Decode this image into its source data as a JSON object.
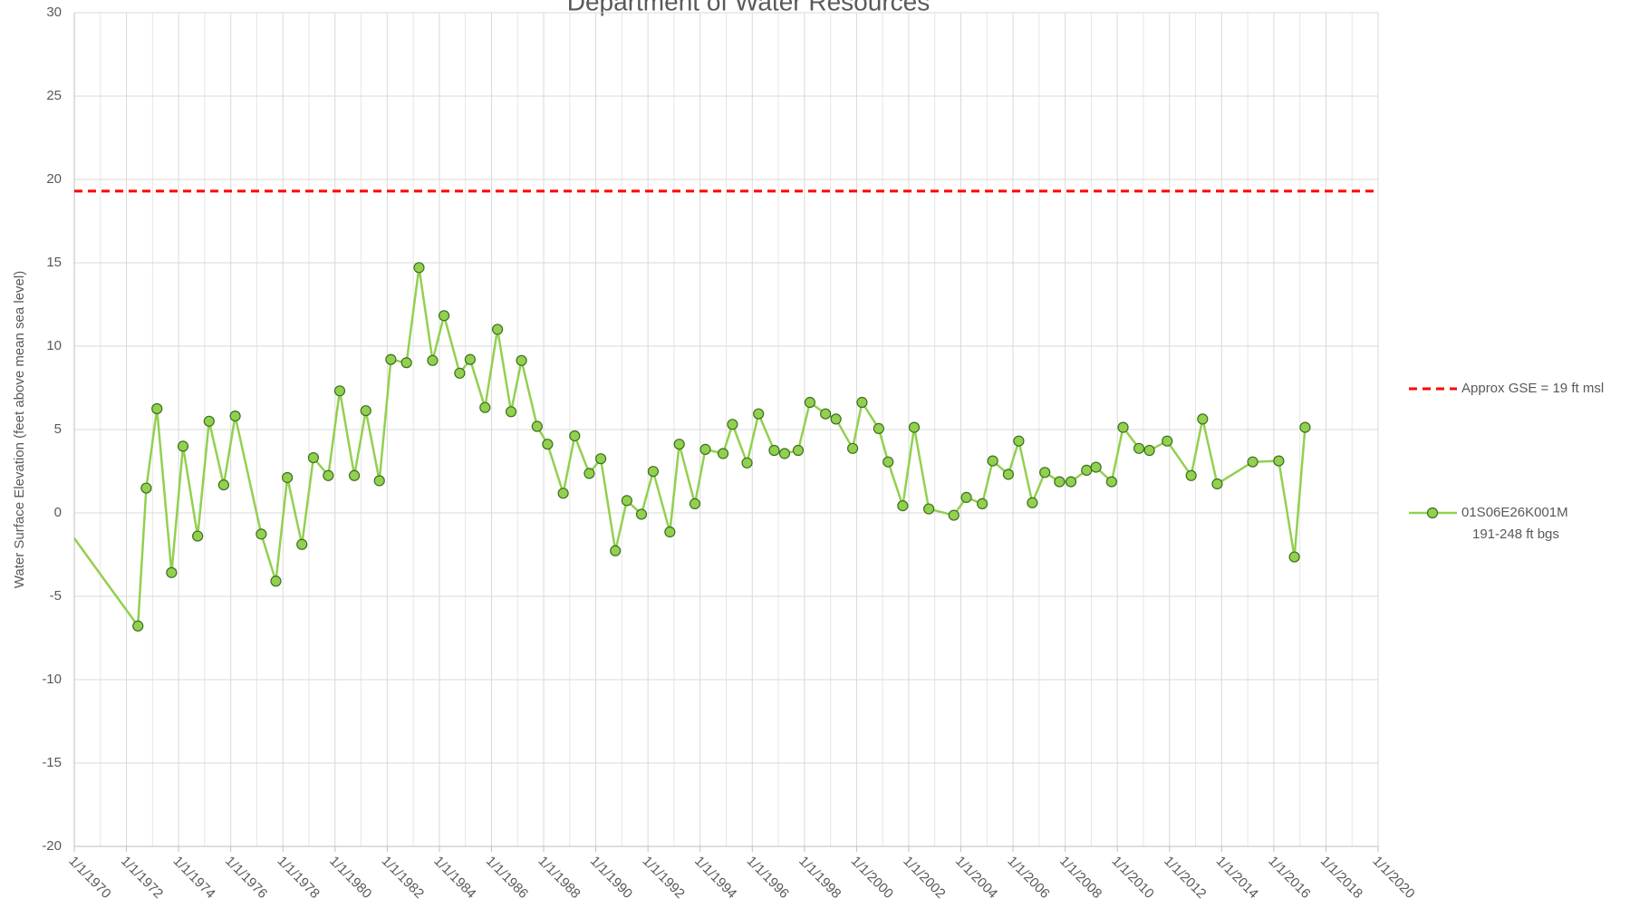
{
  "chart_data": {
    "type": "line",
    "title": "Department of Water Resources",
    "y_label": "Water Surface Elevation (feet above mean sea level)",
    "xlim": [
      1970,
      2020
    ],
    "xticks": [
      {
        "value": 1970,
        "label": "1/1/1970"
      },
      {
        "value": 1972,
        "label": "1/1/1972"
      },
      {
        "value": 1974,
        "label": "1/1/1974"
      },
      {
        "value": 1976,
        "label": "1/1/1976"
      },
      {
        "value": 1978,
        "label": "1/1/1978"
      },
      {
        "value": 1980,
        "label": "1/1/1980"
      },
      {
        "value": 1982,
        "label": "1/1/1982"
      },
      {
        "value": 1984,
        "label": "1/1/1984"
      },
      {
        "value": 1986,
        "label": "1/1/1986"
      },
      {
        "value": 1988,
        "label": "1/1/1988"
      },
      {
        "value": 1990,
        "label": "1/1/1990"
      },
      {
        "value": 1992,
        "label": "1/1/1992"
      },
      {
        "value": 1994,
        "label": "1/1/1994"
      },
      {
        "value": 1996,
        "label": "1/1/1996"
      },
      {
        "value": 1998,
        "label": "1/1/1998"
      },
      {
        "value": 2000,
        "label": "1/1/2000"
      },
      {
        "value": 2002,
        "label": "1/1/2002"
      },
      {
        "value": 2004,
        "label": "1/1/2004"
      },
      {
        "value": 2006,
        "label": "1/1/2006"
      },
      {
        "value": 2008,
        "label": "1/1/2008"
      },
      {
        "value": 2010,
        "label": "1/1/2010"
      },
      {
        "value": 2012,
        "label": "1/1/2012"
      },
      {
        "value": 2014,
        "label": "1/1/2014"
      },
      {
        "value": 2016,
        "label": "1/1/2016"
      },
      {
        "value": 2018,
        "label": "1/1/2018"
      },
      {
        "value": 2020,
        "label": "1/1/2020"
      }
    ],
    "ylim": [
      -20,
      30
    ],
    "yticks": [
      -20,
      -15,
      -10,
      -5,
      0,
      5,
      10,
      15,
      20,
      25,
      30
    ],
    "grid": true,
    "reference_lines": [
      {
        "name": "Approx GSE = 19 ft msl",
        "value": 19.3,
        "color": "#ff0000",
        "style": "dashed"
      }
    ],
    "series": [
      {
        "name": "01S06E26K001M",
        "description": "191-248 ft bgs",
        "color": "#92d050",
        "marker_edge": "#3c6e1e",
        "x": [
          1969,
          1972.44,
          1972.76,
          1973.17,
          1973.73,
          1974.17,
          1974.73,
          1975.17,
          1975.73,
          1976.17,
          1977.17,
          1977.73,
          1978.17,
          1978.73,
          1979.17,
          1979.74,
          1980.18,
          1980.74,
          1981.18,
          1981.7,
          1982.14,
          1982.74,
          1983.22,
          1983.74,
          1984.18,
          1984.78,
          1985.18,
          1985.75,
          1986.23,
          1986.75,
          1987.15,
          1987.75,
          1988.15,
          1988.75,
          1989.19,
          1989.75,
          1990.19,
          1990.75,
          1991.19,
          1991.75,
          1992.2,
          1992.84,
          1993.2,
          1993.8,
          1994.2,
          1994.88,
          1995.24,
          1995.8,
          1996.24,
          1996.84,
          1997.24,
          1997.76,
          1998.21,
          1998.81,
          1999.21,
          1999.85,
          2000.21,
          2000.85,
          2001.21,
          2001.77,
          2002.21,
          2002.77,
          2003.73,
          2004.21,
          2004.82,
          2005.22,
          2005.82,
          2006.22,
          2006.74,
          2007.22,
          2007.78,
          2008.22,
          2008.82,
          2009.18,
          2009.78,
          2010.22,
          2010.83,
          2011.23,
          2011.91,
          2012.83,
          2013.27,
          2013.83,
          2015.19,
          2016.19,
          2016.79,
          2017.2
        ],
        "values": [
          0.63,
          -6.78,
          1.49,
          6.25,
          -3.58,
          4.0,
          -1.39,
          5.5,
          1.68,
          5.81,
          -1.27,
          -4.09,
          2.12,
          -1.89,
          3.31,
          2.24,
          7.32,
          2.24,
          6.13,
          1.93,
          9.2,
          9.01,
          14.71,
          9.14,
          11.83,
          8.38,
          9.2,
          6.32,
          11.01,
          6.07,
          9.14,
          5.19,
          4.12,
          1.18,
          4.62,
          2.37,
          3.25,
          -2.27,
          0.74,
          -0.08,
          2.49,
          -1.14,
          4.12,
          0.55,
          3.81,
          3.56,
          5.31,
          3.0,
          5.94,
          3.75,
          3.56,
          3.75,
          6.63,
          5.94,
          5.63,
          3.87,
          6.63,
          5.06,
          3.06,
          0.43,
          5.13,
          0.24,
          -0.14,
          0.93,
          0.55,
          3.12,
          2.31,
          4.31,
          0.61,
          2.43,
          1.87,
          1.87,
          2.56,
          2.74,
          1.87,
          5.13,
          3.87,
          3.75,
          4.31,
          2.24,
          5.63,
          1.74,
          3.06,
          3.12,
          -2.64,
          5.13
        ]
      }
    ]
  }
}
